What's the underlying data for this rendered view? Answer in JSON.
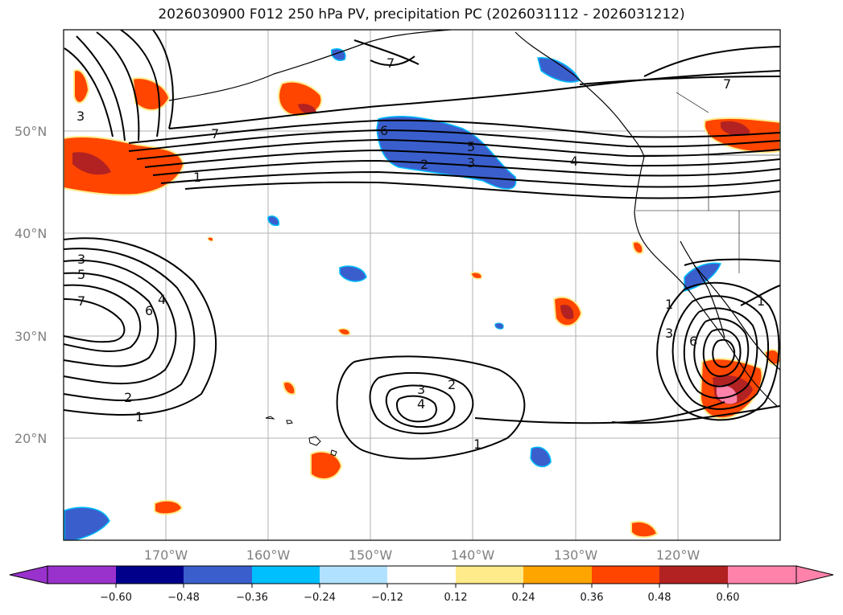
{
  "title": "2026030900 F012 250 hPa PV, precipitation PC (2026031112 - 2026031212)",
  "lat_labels": [
    "50°N",
    "40°N",
    "30°N",
    "20°N"
  ],
  "lon_labels": [
    "170°W",
    "160°W",
    "150°W",
    "140°W",
    "130°W",
    "120°W"
  ],
  "colorbar": {
    "ticks": [
      "−0.60",
      "−0.48",
      "−0.36",
      "−0.24",
      "−0.12",
      "0.12",
      "0.24",
      "0.36",
      "0.48",
      "0.60"
    ],
    "colors": [
      "#9932cc",
      "#00008b",
      "#3a5fcd",
      "#00bfff",
      "#b0e2ff",
      "#ffffff",
      "#ffeb8a",
      "#ffa500",
      "#ff4500",
      "#b22222",
      "#ff82ab",
      "#ff82ab"
    ]
  },
  "contour_labels": [
    {
      "text": "7"
    },
    {
      "text": "7"
    },
    {
      "text": "7"
    },
    {
      "text": "6"
    },
    {
      "text": "5"
    },
    {
      "text": "3"
    },
    {
      "text": "2"
    },
    {
      "text": "4"
    },
    {
      "text": "1"
    },
    {
      "text": "3"
    },
    {
      "text": "5"
    },
    {
      "text": "7"
    },
    {
      "text": "4"
    },
    {
      "text": "6"
    },
    {
      "text": "2"
    },
    {
      "text": "1"
    },
    {
      "text": "3"
    },
    {
      "text": "2"
    },
    {
      "text": "4"
    },
    {
      "text": "1"
    },
    {
      "text": "1"
    },
    {
      "text": "3"
    },
    {
      "text": "6"
    },
    {
      "text": "1"
    },
    {
      "text": "3"
    }
  ],
  "palette": {
    "negative_fill": "#3a5fcd",
    "positive_fill": "#ff4500",
    "strong_positive": "#b22222",
    "max_positive": "#ff82ab",
    "halo_neg": "#00bfff",
    "halo_pos": "#ffeb8a"
  }
}
